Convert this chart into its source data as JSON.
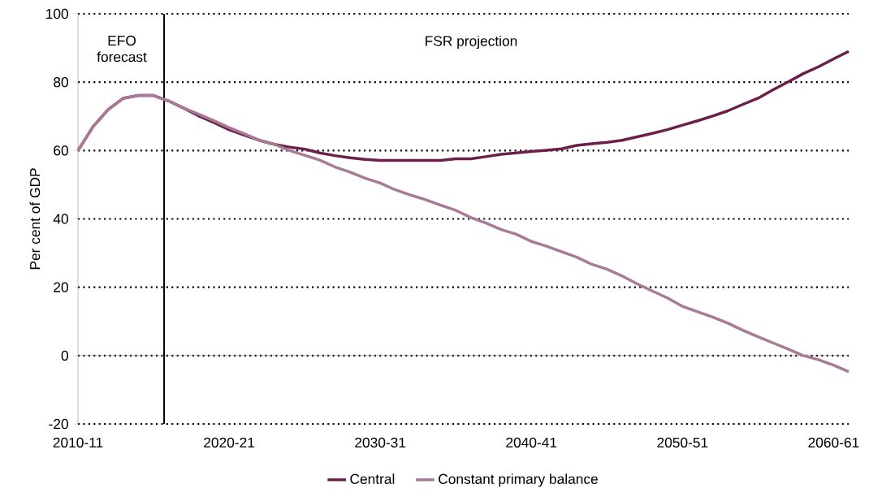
{
  "chart_data": {
    "type": "line",
    "ylabel": "Per cent of GDP",
    "categories": [
      "2010-11",
      null,
      null,
      null,
      null,
      null,
      null,
      null,
      null,
      null,
      "2020-21",
      null,
      null,
      null,
      null,
      null,
      null,
      null,
      null,
      null,
      "2030-31",
      null,
      null,
      null,
      null,
      null,
      null,
      null,
      null,
      null,
      "2040-41",
      null,
      null,
      null,
      null,
      null,
      null,
      null,
      null,
      null,
      "2050-51",
      null,
      null,
      null,
      null,
      null,
      null,
      null,
      null,
      null,
      "2060-61",
      null
    ],
    "series": [
      {
        "name": "Central",
        "color": "#6b1f4a",
        "values": [
          60,
          67,
          72,
          75.3,
          76.1,
          76.1,
          74.5,
          72.4,
          70.1,
          68.2,
          66.1,
          64.5,
          63,
          61.8,
          61,
          60.4,
          59.3,
          58.5,
          57.9,
          57.4,
          57.1,
          57.1,
          57.1,
          57.1,
          57.1,
          57.6,
          57.6,
          58.2,
          58.9,
          59.3,
          59.7,
          60.1,
          60.5,
          61.5,
          62,
          62.4,
          63,
          64,
          65,
          66.1,
          67.4,
          68.7,
          70.1,
          71.6,
          73.5,
          75.3,
          77.8,
          80.1,
          82.5,
          84.5,
          86.8,
          89
        ]
      },
      {
        "name": "Constant primary balance",
        "color": "#a87a96",
        "values": [
          60,
          67,
          72,
          75.3,
          76.1,
          76.1,
          74.5,
          72.4,
          70.6,
          68.7,
          66.7,
          64.9,
          63,
          61.8,
          60,
          58.6,
          57.2,
          55.2,
          53.7,
          51.9,
          50.5,
          48.5,
          47,
          45.6,
          44,
          42.5,
          40.4,
          38.8,
          36.9,
          35.5,
          33.4,
          32,
          30.4,
          28.8,
          26.7,
          25.3,
          23.3,
          21,
          18.9,
          16.9,
          14.4,
          12.8,
          11.3,
          9.5,
          7.4,
          5.5,
          3.7,
          1.9,
          0,
          -1.2,
          -2.8,
          -4.7
        ]
      }
    ],
    "ylim": [
      -20,
      100
    ],
    "yticks": [
      -20,
      0,
      20,
      40,
      60,
      80,
      100
    ],
    "grid": "y",
    "legend": "bottom",
    "annotations": [
      "EFO forecast",
      "FSR projection"
    ]
  }
}
